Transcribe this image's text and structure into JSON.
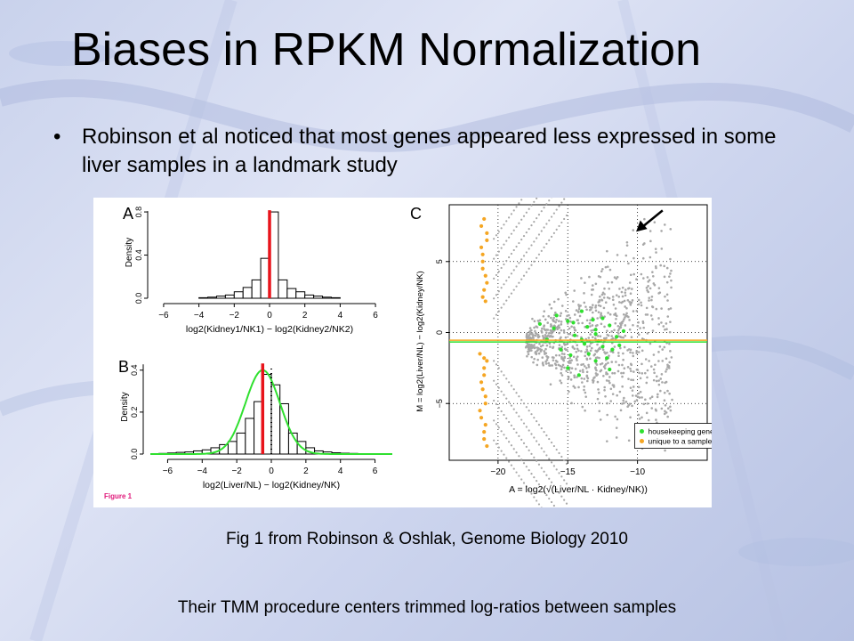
{
  "slide": {
    "title": "Biases in RPKM Normalization",
    "bullet_marker": "•",
    "bullet": "Robinson et al noticed that most genes appeared less expressed in some liver samples in a landmark study",
    "caption": "Fig 1 from Robinson & Oshlak, Genome Biology 2010",
    "footer": "Their TMM procedure centers trimmed log-ratios between samples"
  },
  "figure": {
    "tag": "Figure 1",
    "colors": {
      "red": "#e8141b",
      "green": "#2fe02f",
      "orange": "#f5a623",
      "gray": "#a8a8a8"
    }
  },
  "chart_data": [
    {
      "type": "bar",
      "panel_label": "A",
      "title": "",
      "xlabel": "log2(Kidney1/NK1) − log2(Kidney2/NK2)",
      "ylabel": "Density",
      "xlim": [
        -6.5,
        6.5
      ],
      "ylim": [
        0,
        0.85
      ],
      "x_ticks": [
        "−6",
        "−4",
        "−2",
        "0",
        "2",
        "4",
        "6"
      ],
      "y_ticks": [
        "0.0",
        "0.4",
        "0.8"
      ],
      "bin_width": 0.5,
      "bin_starts": [
        -4,
        -3.5,
        -3,
        -2.5,
        -2,
        -1.5,
        -1,
        -0.5,
        0,
        0.5,
        1,
        1.5,
        2,
        2.5,
        3,
        3.5
      ],
      "values": [
        0.005,
        0.01,
        0.02,
        0.03,
        0.06,
        0.1,
        0.17,
        0.37,
        0.8,
        0.17,
        0.09,
        0.06,
        0.03,
        0.02,
        0.01,
        0.005
      ],
      "vline": {
        "x": 0,
        "color": "red"
      }
    },
    {
      "type": "bar",
      "panel_label": "B",
      "title": "",
      "xlabel": "log2(Liver/NL) − log2(Kidney/NK)",
      "ylabel": "Density",
      "xlim": [
        -7,
        7
      ],
      "ylim": [
        0,
        0.45
      ],
      "x_ticks": [
        "−6",
        "−4",
        "−2",
        "0",
        "2",
        "4",
        "6"
      ],
      "y_ticks": [
        "0.0",
        "0.2",
        "0.4"
      ],
      "bin_width": 0.5,
      "bin_starts": [
        -6.5,
        -6,
        -5.5,
        -5,
        -4.5,
        -4,
        -3.5,
        -3,
        -2.5,
        -2,
        -1.5,
        -1,
        -0.5,
        0,
        0.5,
        1,
        1.5,
        2,
        2.5,
        3,
        3.5,
        4,
        4.5,
        5,
        5.5,
        6
      ],
      "values": [
        0.003,
        0.005,
        0.008,
        0.01,
        0.015,
        0.02,
        0.03,
        0.045,
        0.06,
        0.1,
        0.17,
        0.25,
        0.38,
        0.33,
        0.24,
        0.1,
        0.06,
        0.03,
        0.015,
        0.01,
        0.006,
        0.004,
        0.003,
        0.002,
        0.002,
        0.001
      ],
      "vline": {
        "x": -0.5,
        "color": "red"
      },
      "dotted_vline": {
        "x": 0
      },
      "fit_curve": {
        "mean": -0.5,
        "sd": 1.0,
        "peak": 0.4,
        "color": "green"
      }
    },
    {
      "type": "scatter",
      "panel_label": "C",
      "title": "",
      "xlabel": "A = log2(√(Liver/NL · Kidney/NK))",
      "ylabel": "M = log2(Liver/NL) − log2(Kidney/NK)",
      "xlim": [
        -23.5,
        -5
      ],
      "ylim": [
        -9,
        9
      ],
      "x_ticks": [
        "−20",
        "−15",
        "−10"
      ],
      "y_ticks": [
        "−5",
        "0",
        "5"
      ],
      "hline": {
        "y": -0.6,
        "colors": [
          "orange",
          "green"
        ]
      },
      "grid": "dotted",
      "legend": {
        "position": "bottom-right",
        "entries": [
          "housekeeping genes",
          "unique to a sample"
        ]
      },
      "series": [
        {
          "name": "housekeeping genes",
          "color": "green",
          "points": [
            [
              -14,
              -0.5
            ],
            [
              -13,
              0.2
            ],
            [
              -12.5,
              -1
            ],
            [
              -15,
              0.8
            ],
            [
              -13.5,
              -1.5
            ],
            [
              -12,
              0.5
            ],
            [
              -11.5,
              -0.3
            ],
            [
              -14.5,
              -0.2
            ],
            [
              -13,
              -2
            ],
            [
              -16,
              0.3
            ],
            [
              -12.5,
              1
            ],
            [
              -15.5,
              -1.2
            ],
            [
              -14,
              1.5
            ],
            [
              -13.8,
              -0.8
            ],
            [
              -12.2,
              -1.8
            ],
            [
              -11,
              0.1
            ],
            [
              -16.5,
              -0.5
            ],
            [
              -15,
              -2.5
            ],
            [
              -13.2,
              0.9
            ],
            [
              -14.8,
              -1.6
            ],
            [
              -12.8,
              -0.6
            ],
            [
              -11.8,
              -1.2
            ],
            [
              -13.6,
              0.4
            ],
            [
              -14.2,
              -3
            ],
            [
              -17,
              0.6
            ],
            [
              -12,
              -2.6
            ],
            [
              -15.8,
              1.2
            ],
            [
              -13,
              -0.1
            ],
            [
              -11.3,
              -0.9
            ],
            [
              -14.6,
              0.7
            ]
          ]
        },
        {
          "name": "unique to a sample",
          "color": "orange",
          "points": [
            [
              -20.8,
              -8
            ],
            [
              -21,
              -7
            ],
            [
              -21.2,
              -6
            ],
            [
              -20.9,
              -5
            ],
            [
              -21.1,
              -4
            ],
            [
              -21,
              -3
            ],
            [
              -20.8,
              -2
            ],
            [
              -21.3,
              -1.5
            ],
            [
              -21,
              3
            ],
            [
              -20.9,
              4
            ],
            [
              -21.1,
              5
            ],
            [
              -21.2,
              6
            ],
            [
              -20.8,
              7
            ],
            [
              -21,
              8
            ],
            [
              -21.1,
              2.5
            ],
            [
              -20.9,
              -4.5
            ],
            [
              -21.2,
              -3.5
            ],
            [
              -21,
              -2.5
            ],
            [
              -20.8,
              3.5
            ],
            [
              -21.1,
              4.5
            ],
            [
              -21.2,
              7.5
            ],
            [
              -20.9,
              -6.5
            ],
            [
              -21,
              -7.5
            ],
            [
              -20.8,
              6.5
            ],
            [
              -21.3,
              -5.5
            ],
            [
              -21.1,
              5.5
            ],
            [
              -21,
              -1.8
            ],
            [
              -20.9,
              2.2
            ]
          ]
        }
      ],
      "annotation": "arrow pointing to upper-right cluster"
    }
  ]
}
